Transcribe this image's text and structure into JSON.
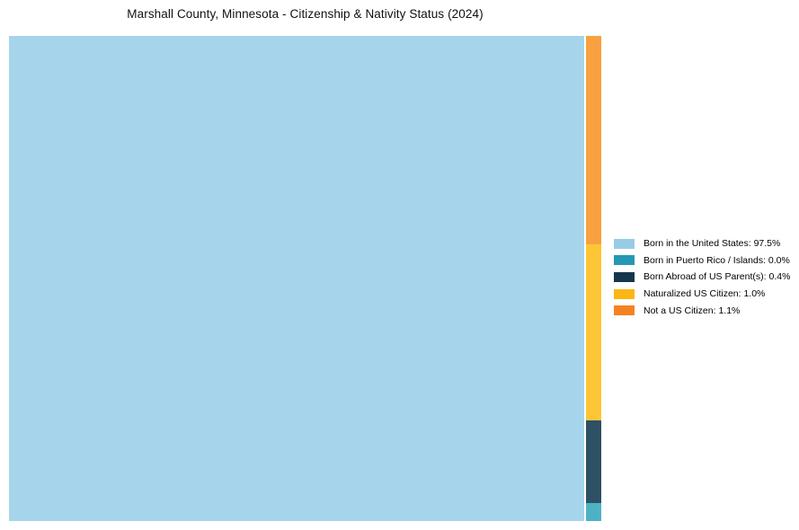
{
  "page": {
    "background": "#ffffff"
  },
  "chart_data": {
    "type": "treemap",
    "title": "Marshall County, Minnesota - Citizenship & Nativity Status (2024)",
    "categories": [
      "Born in the United States",
      "Born in Puerto Rico / Islands",
      "Born Abroad of US Parent(s)",
      "Naturalized US Citizen",
      "Not a US Citizen"
    ],
    "values": [
      97.5,
      0.0,
      0.4,
      1.0,
      1.1
    ],
    "unit": "%",
    "legend_position": "right-center",
    "legend": [
      {
        "label": "Born in the United States: 97.5%",
        "color": "#98CCE5"
      },
      {
        "label": "Born in Puerto Rico / Islands: 0.0%",
        "color": "#2598B6"
      },
      {
        "label": "Born Abroad of US Parent(s): 0.4%",
        "color": "#14374F"
      },
      {
        "label": "Naturalized US Citizen: 1.0%",
        "color": "#FCB614"
      },
      {
        "label": "Not a US Citizen: 1.1%",
        "color": "#F58220"
      }
    ],
    "layout": {
      "main_tile": {
        "category": "Born in the United States",
        "value_pct": 97.5,
        "color": "#A5D4EB"
      },
      "strip_tiles": [
        {
          "category": "Not a US Citizen",
          "value_pct": 1.1,
          "color": "#F9A13E",
          "height": "43%"
        },
        {
          "category": "Naturalized US Citizen",
          "value_pct": 1.0,
          "color": "#FDC636",
          "height": "36.3%"
        },
        {
          "category": "Born Abroad of US Parent(s)",
          "value_pct": 0.4,
          "color": "#2E5065",
          "height": "17%"
        },
        {
          "category": "Born in Puerto Rico / Islands",
          "value_pct": 0.0,
          "color": "#4DB3C4",
          "height": "3.7%"
        }
      ]
    }
  }
}
